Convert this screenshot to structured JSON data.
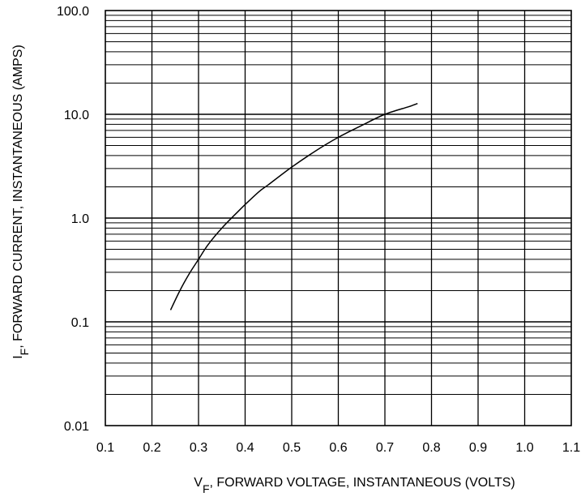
{
  "chart_data": {
    "type": "line",
    "title": "",
    "xlabel": {
      "symbol": "V",
      "subscript": "F",
      "text": ", FORWARD VOLTAGE, INSTANTANEOUS (VOLTS)"
    },
    "ylabel": {
      "symbol": "I",
      "subscript": "F",
      "text": ", FORWARD CURRENT, INSTANTANEOUS (AMPS)"
    },
    "xlim": [
      0.1,
      1.1
    ],
    "ylim": [
      0.01,
      100
    ],
    "yscale": "log",
    "grid": true,
    "x_ticks": [
      "0.1",
      "0.2",
      "0.3",
      "0.4",
      "0.5",
      "0.6",
      "0.7",
      "0.8",
      "0.9",
      "1.0",
      "1.1"
    ],
    "y_ticks": [
      "100.0",
      "10.0",
      "1.0",
      "0.1",
      "0.01"
    ],
    "series": [
      {
        "color": "#000000",
        "points": [
          [
            0.24,
            0.13
          ],
          [
            0.26,
            0.2
          ],
          [
            0.28,
            0.29
          ],
          [
            0.3,
            0.4
          ],
          [
            0.32,
            0.55
          ],
          [
            0.35,
            0.8
          ],
          [
            0.38,
            1.1
          ],
          [
            0.4,
            1.35
          ],
          [
            0.43,
            1.8
          ],
          [
            0.45,
            2.1
          ],
          [
            0.5,
            3.1
          ],
          [
            0.55,
            4.4
          ],
          [
            0.6,
            6.0
          ],
          [
            0.65,
            7.8
          ],
          [
            0.7,
            10.0
          ],
          [
            0.75,
            11.8
          ],
          [
            0.77,
            12.7
          ]
        ]
      }
    ]
  }
}
